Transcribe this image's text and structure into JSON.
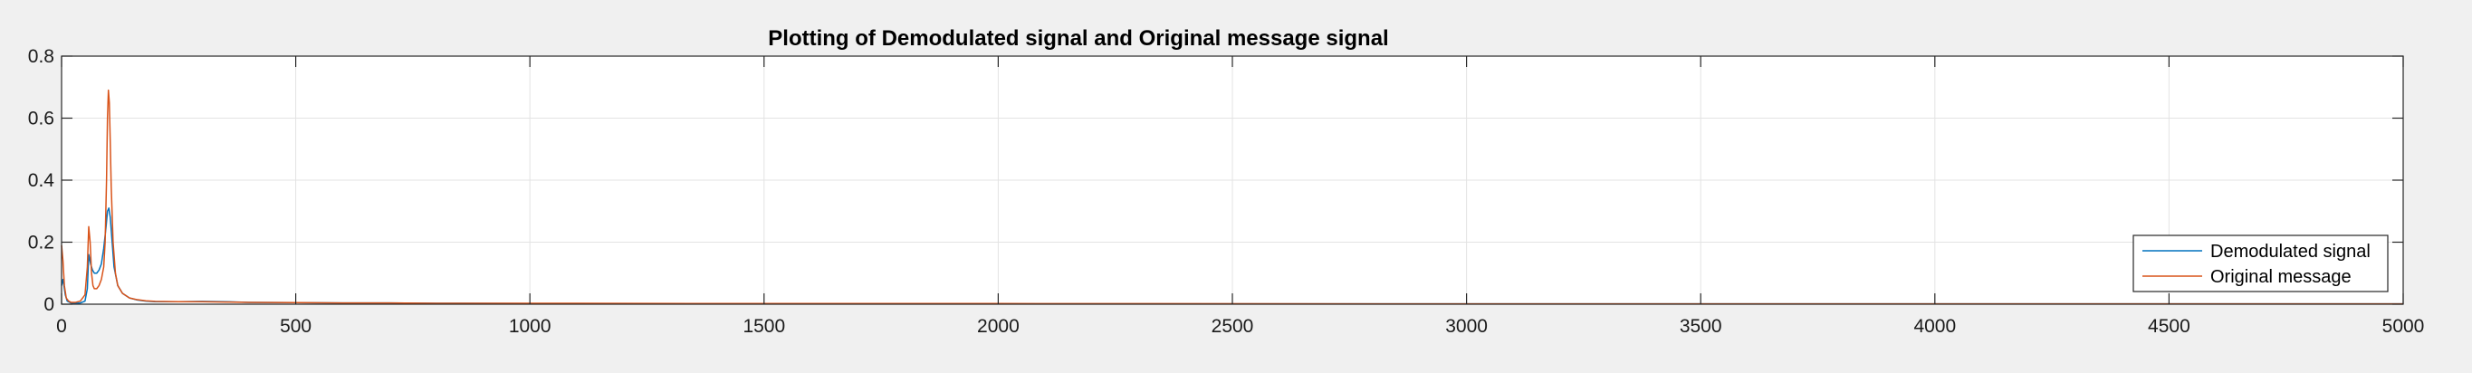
{
  "chart_data": {
    "type": "line",
    "title": "Plotting of Demodulated signal and Original message signal",
    "xlabel": "",
    "ylabel": "",
    "xlim": [
      0,
      5000
    ],
    "ylim": [
      0,
      0.8
    ],
    "xticks": [
      0,
      500,
      1000,
      1500,
      2000,
      2500,
      3000,
      3500,
      4000,
      4500,
      5000
    ],
    "yticks": [
      0,
      0.2,
      0.4,
      0.6,
      0.8
    ],
    "xtick_labels": [
      "0",
      "500",
      "1000",
      "1500",
      "2000",
      "2500",
      "3000",
      "3500",
      "4000",
      "4500",
      "5000"
    ],
    "ytick_labels": [
      "0",
      "0.2",
      "0.4",
      "0.6",
      "0.8"
    ],
    "grid": true,
    "legend_position": "bottom-right",
    "series": [
      {
        "name": "Demodulated signal",
        "color": "#0072BD",
        "x": [
          0,
          3,
          8,
          12,
          20,
          30,
          40,
          50,
          55,
          58,
          62,
          66,
          70,
          75,
          80,
          85,
          90,
          95,
          98,
          101,
          104,
          108,
          112,
          120,
          130,
          145,
          160,
          180,
          200,
          250,
          300,
          350,
          400,
          500,
          600,
          700,
          800,
          1000,
          1500,
          2000,
          3000,
          4000,
          5000
        ],
        "y": [
          0.06,
          0.08,
          0.03,
          0.01,
          0.004,
          0.003,
          0.004,
          0.01,
          0.05,
          0.16,
          0.13,
          0.11,
          0.1,
          0.1,
          0.11,
          0.13,
          0.18,
          0.25,
          0.3,
          0.31,
          0.28,
          0.2,
          0.12,
          0.06,
          0.035,
          0.02,
          0.014,
          0.01,
          0.008,
          0.008,
          0.009,
          0.008,
          0.006,
          0.005,
          0.004,
          0.004,
          0.003,
          0.002,
          0.002,
          0.001,
          0.001,
          0.001,
          0.001
        ]
      },
      {
        "name": "Original message",
        "color": "#D95319",
        "x": [
          0,
          3,
          6,
          10,
          15,
          20,
          30,
          40,
          50,
          55,
          58,
          61,
          64,
          67,
          70,
          75,
          80,
          85,
          90,
          93,
          96,
          98,
          100,
          102,
          104,
          106,
          110,
          115,
          120,
          130,
          145,
          160,
          180,
          200,
          250,
          300,
          350,
          400,
          500,
          600,
          700,
          800,
          1000,
          1500,
          2000,
          3000,
          4000,
          5000
        ],
        "y": [
          0.19,
          0.14,
          0.06,
          0.02,
          0.01,
          0.006,
          0.006,
          0.01,
          0.03,
          0.12,
          0.25,
          0.2,
          0.1,
          0.06,
          0.05,
          0.05,
          0.06,
          0.08,
          0.12,
          0.2,
          0.4,
          0.6,
          0.69,
          0.65,
          0.52,
          0.38,
          0.2,
          0.1,
          0.06,
          0.035,
          0.02,
          0.015,
          0.011,
          0.009,
          0.008,
          0.008,
          0.007,
          0.006,
          0.005,
          0.004,
          0.004,
          0.003,
          0.003,
          0.002,
          0.002,
          0.001,
          0.001,
          0.001
        ]
      }
    ]
  }
}
